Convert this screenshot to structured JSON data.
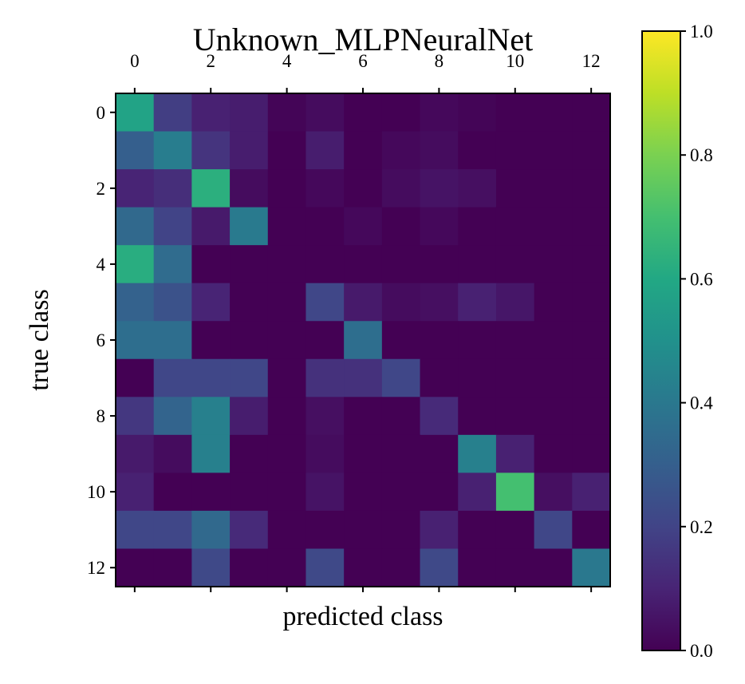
{
  "chart_data": {
    "type": "heatmap",
    "title": "Unknown_MLPNeuralNet",
    "xlabel": "predicted class",
    "ylabel": "true class",
    "x_ticks": [
      "0",
      "2",
      "4",
      "6",
      "8",
      "10",
      "12"
    ],
    "y_ticks": [
      "0",
      "2",
      "4",
      "6",
      "8",
      "10",
      "12"
    ],
    "colorbar_ticks": [
      "0.0",
      "0.2",
      "0.4",
      "0.6",
      "0.8",
      "1.0"
    ],
    "colormap": "viridis",
    "vmin": 0.0,
    "vmax": 1.0,
    "x_axis_position": "top",
    "rows": [
      "0",
      "1",
      "2",
      "3",
      "4",
      "5",
      "6",
      "7",
      "8",
      "9",
      "10",
      "11",
      "12"
    ],
    "cols": [
      "0",
      "1",
      "2",
      "3",
      "4",
      "5",
      "6",
      "7",
      "8",
      "9",
      "10",
      "11",
      "12"
    ],
    "values": [
      [
        0.58,
        0.18,
        0.09,
        0.08,
        0.01,
        0.03,
        0.0,
        0.0,
        0.02,
        0.01,
        0.0,
        0.0,
        0.0
      ],
      [
        0.3,
        0.42,
        0.15,
        0.08,
        0.0,
        0.08,
        0.0,
        0.02,
        0.03,
        0.0,
        0.0,
        0.0,
        0.0
      ],
      [
        0.1,
        0.13,
        0.63,
        0.03,
        0.0,
        0.02,
        0.0,
        0.03,
        0.05,
        0.04,
        0.0,
        0.0,
        0.0
      ],
      [
        0.34,
        0.2,
        0.07,
        0.41,
        0.0,
        0.0,
        0.02,
        0.0,
        0.02,
        0.0,
        0.0,
        0.0,
        0.0
      ],
      [
        0.62,
        0.35,
        0.0,
        0.0,
        0.0,
        0.0,
        0.0,
        0.0,
        0.0,
        0.0,
        0.0,
        0.0,
        0.0
      ],
      [
        0.31,
        0.25,
        0.1,
        0.0,
        0.0,
        0.21,
        0.07,
        0.03,
        0.04,
        0.09,
        0.06,
        0.0,
        0.0
      ],
      [
        0.36,
        0.36,
        0.0,
        0.0,
        0.0,
        0.0,
        0.36,
        0.0,
        0.0,
        0.0,
        0.0,
        0.0,
        0.0
      ],
      [
        0.0,
        0.21,
        0.21,
        0.21,
        0.0,
        0.14,
        0.14,
        0.21,
        0.0,
        0.0,
        0.0,
        0.0,
        0.0
      ],
      [
        0.16,
        0.32,
        0.43,
        0.08,
        0.0,
        0.04,
        0.0,
        0.0,
        0.12,
        0.0,
        0.0,
        0.0,
        0.0
      ],
      [
        0.07,
        0.03,
        0.43,
        0.0,
        0.0,
        0.03,
        0.0,
        0.0,
        0.0,
        0.43,
        0.09,
        0.0,
        0.0
      ],
      [
        0.09,
        0.0,
        0.0,
        0.0,
        0.0,
        0.05,
        0.0,
        0.0,
        0.0,
        0.09,
        0.7,
        0.04,
        0.09
      ],
      [
        0.21,
        0.21,
        0.34,
        0.12,
        0.0,
        0.0,
        0.0,
        0.0,
        0.09,
        0.0,
        0.0,
        0.21,
        0.0
      ],
      [
        0.0,
        0.0,
        0.22,
        0.0,
        0.0,
        0.22,
        0.0,
        0.0,
        0.22,
        0.0,
        0.0,
        0.0,
        0.4
      ]
    ]
  }
}
